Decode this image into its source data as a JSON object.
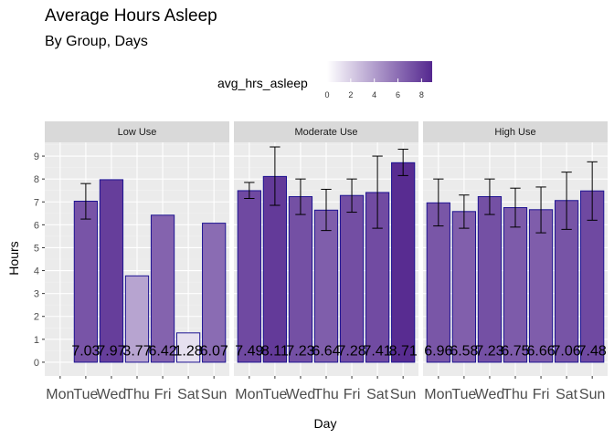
{
  "chart_data": {
    "type": "bar",
    "title": "Average Hours Asleep",
    "subtitle": "By Group, Days",
    "xlabel": "Day",
    "ylabel": "Hours",
    "categories": [
      "Mon",
      "Tue",
      "Wed",
      "Thu",
      "Fri",
      "Sat",
      "Sun"
    ],
    "ylim": [
      -0.6,
      9.6
    ],
    "y_ticks": [
      0,
      1,
      2,
      3,
      4,
      5,
      6,
      7,
      8,
      9
    ],
    "grid": true,
    "legend": {
      "title": "avg_hrs_asleep",
      "placement": "top",
      "type": "colorbar",
      "ticks": [
        "0",
        "2",
        "4",
        "6",
        "8"
      ],
      "range": [
        0,
        8.9
      ],
      "color_low": "#ffffff",
      "color_high": "#54278f"
    },
    "facets": [
      {
        "name": "Low Use",
        "values": [
          null,
          7.03,
          7.97,
          3.77,
          6.42,
          1.28,
          6.07
        ],
        "labels": [
          "",
          "7.03",
          "7.97",
          "3.77",
          "6.42",
          "1.28",
          "6.07"
        ],
        "error_bars": [
          null,
          [
            6.25,
            7.8
          ],
          null,
          null,
          null,
          null,
          null
        ]
      },
      {
        "name": "Moderate Use",
        "values": [
          7.49,
          8.11,
          7.23,
          6.64,
          7.28,
          7.41,
          8.71
        ],
        "labels": [
          "7.49",
          "8.11",
          "7.23",
          "6.64",
          "7.28",
          "7.41",
          "8.71"
        ],
        "error_bars": [
          [
            7.15,
            7.85
          ],
          [
            6.85,
            9.4
          ],
          [
            6.45,
            8.0
          ],
          [
            5.75,
            7.55
          ],
          [
            6.55,
            8.0
          ],
          [
            5.85,
            9.0
          ],
          [
            8.15,
            9.3
          ]
        ]
      },
      {
        "name": "High Use",
        "values": [
          6.96,
          6.58,
          7.23,
          6.75,
          6.66,
          7.06,
          7.48
        ],
        "labels": [
          "6.96",
          "6.58",
          "7.23",
          "6.75",
          "6.66",
          "7.06",
          "7.48"
        ],
        "error_bars": [
          [
            5.95,
            8.0
          ],
          [
            5.85,
            7.3
          ],
          [
            6.45,
            8.0
          ],
          [
            5.9,
            7.6
          ],
          [
            5.65,
            7.65
          ],
          [
            5.8,
            8.3
          ],
          [
            6.2,
            8.75
          ]
        ]
      }
    ],
    "colors": {
      "panel_background": "#ebebeb",
      "grid_major": "#ffffff",
      "grid_minor": "#f2f2f2",
      "strip_background": "#d9d9d9",
      "bar_outline": "#1d1392",
      "error_bar": "#000000"
    }
  }
}
